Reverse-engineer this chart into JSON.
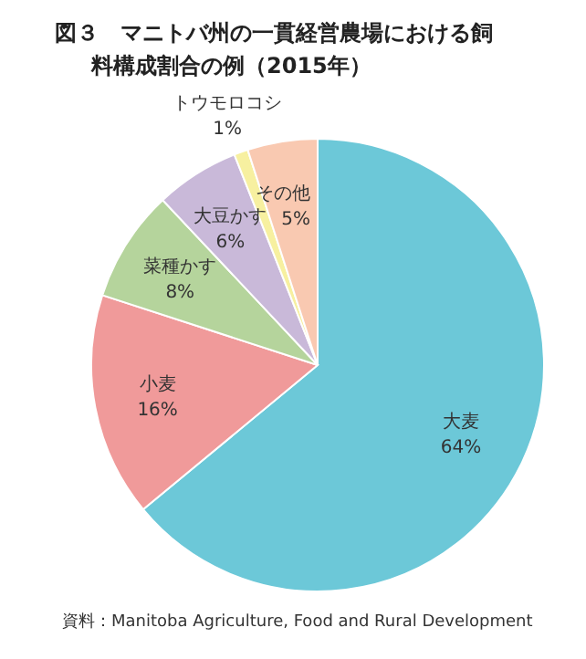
{
  "chart_data": {
    "type": "pie",
    "title": "図３　マニトバ州の一貫経営農場における飼料構成割合の例（2015年）",
    "categories": [
      "大麦",
      "小麦",
      "菜種かす",
      "大豆かす",
      "トウモロコシ",
      "その他"
    ],
    "values": [
      64,
      16,
      8,
      6,
      1,
      5
    ],
    "value_labels": [
      "64%",
      "16%",
      "8%",
      "6%",
      "1%",
      "5%"
    ],
    "colors": [
      "#6cc8d8",
      "#f09a9a",
      "#b5d49c",
      "#c9b9d9",
      "#f7f0a0",
      "#f9c9b1"
    ],
    "annotations": [
      "資料：Manitoba Agriculture, Food and Rural Development"
    ]
  }
}
